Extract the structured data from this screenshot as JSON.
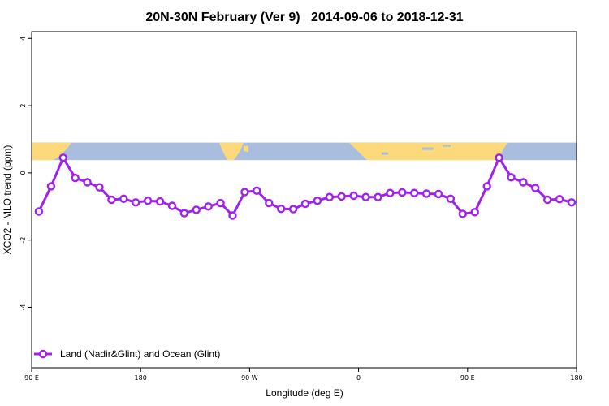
{
  "chart_data": {
    "type": "line",
    "title": "20N-30N February (Ver 9)   2014-09-06 to 2018-12-31",
    "xlabel": "Longitude (deg E)",
    "ylabel": "XCO2 - MLO trend (ppm)",
    "xlim": [
      90,
      540
    ],
    "ylim": [
      -5.8,
      4.2
    ],
    "x_ticks": [
      {
        "value": 90,
        "label": "90 E"
      },
      {
        "value": 180,
        "label": "180"
      },
      {
        "value": 270,
        "label": "90 W"
      },
      {
        "value": 360,
        "label": "0"
      },
      {
        "value": 450,
        "label": "90 E"
      },
      {
        "value": 540,
        "label": "180"
      }
    ],
    "y_ticks": [
      {
        "value": 4,
        "label": "4"
      },
      {
        "value": 2,
        "label": "2"
      },
      {
        "value": 0,
        "label": "0"
      },
      {
        "value": -2,
        "label": "-2"
      },
      {
        "value": -4,
        "label": "-4"
      }
    ],
    "map_band": {
      "y_top": 0.9,
      "y_bottom": 0.38,
      "ocean_color": "#a9bedf",
      "land_color": "#fcd97a"
    },
    "series": [
      {
        "name": "Land (Nadir&Glint) and Ocean (Glint)",
        "color": "#a020f0",
        "x": [
          96,
          106,
          116,
          126,
          136,
          146,
          156,
          166,
          176,
          186,
          196,
          206,
          216,
          226,
          236,
          246,
          256,
          266,
          276,
          286,
          296,
          306,
          316,
          326,
          336,
          346,
          356,
          366,
          376,
          386,
          396,
          406,
          416,
          426,
          436,
          446,
          456,
          466,
          476,
          486,
          496,
          506,
          516,
          526,
          536
        ],
        "y": [
          -1.15,
          -0.4,
          0.45,
          -0.15,
          -0.28,
          -0.43,
          -0.8,
          -0.77,
          -0.88,
          -0.83,
          -0.85,
          -0.98,
          -1.2,
          -1.1,
          -1.0,
          -0.9,
          -1.27,
          -0.57,
          -0.53,
          -0.9,
          -1.07,
          -1.08,
          -0.92,
          -0.83,
          -0.72,
          -0.7,
          -0.68,
          -0.72,
          -0.72,
          -0.6,
          -0.58,
          -0.6,
          -0.62,
          -0.63,
          -0.77,
          -1.22,
          -1.17,
          -0.4,
          0.45,
          -0.13,
          -0.28,
          -0.45,
          -0.8,
          -0.78,
          -0.88
        ]
      }
    ],
    "legend_position": "bottom-left"
  }
}
